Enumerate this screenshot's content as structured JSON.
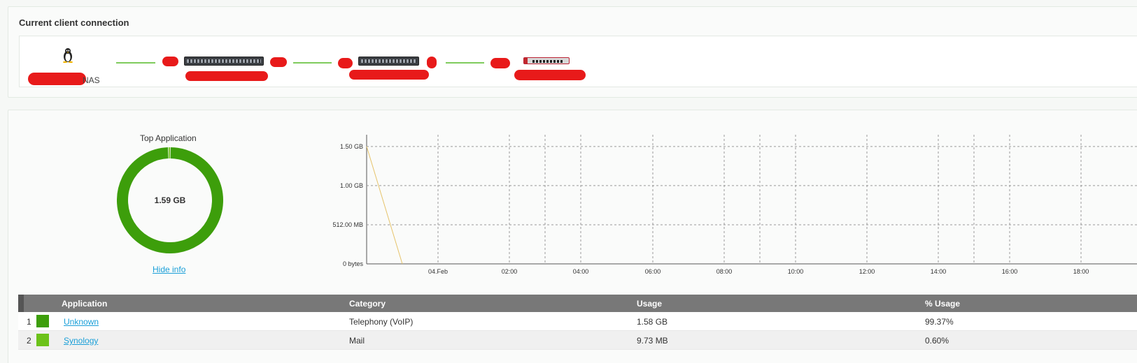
{
  "connection": {
    "title": "Current client connection",
    "client_label": "NAS",
    "icons": {
      "client": "linux-icon",
      "switch1": "switch-icon",
      "switch2": "switch-icon",
      "firewall": "firewall-icon"
    }
  },
  "top_app": {
    "title": "Top Application",
    "total": "1.59 GB",
    "hide_info": "Hide info",
    "slices": [
      {
        "name": "Unknown",
        "pct": 99.37,
        "color": "#3d9e0b"
      },
      {
        "name": "Synology",
        "pct": 0.6,
        "color": "#6cc21a"
      }
    ]
  },
  "chart_data": {
    "type": "line",
    "y_ticks": [
      "0 bytes",
      "512.00 MB",
      "1.00 GB",
      "1.50 GB"
    ],
    "x_ticks": [
      "04.Feb",
      "02:00",
      "04:00",
      "06:00",
      "08:00",
      "10:00",
      "12:00",
      "14:00",
      "16:00",
      "18:00"
    ],
    "ylim_gb": [
      0,
      1.65
    ],
    "series": [
      {
        "color": "#e6c36a",
        "points": [
          {
            "x": "start",
            "y_gb": 1.5
          },
          {
            "x": "00:00 (before 04.Feb)",
            "y_gb": 0
          }
        ]
      }
    ],
    "grid": true
  },
  "table": {
    "headers": [
      "Application",
      "Category",
      "Usage",
      "% Usage"
    ],
    "rows": [
      {
        "index": "1",
        "color": "#3d9e0b",
        "application": "Unknown",
        "category": "Telephony (VoIP)",
        "usage": "1.58 GB",
        "pct": "99.37%"
      },
      {
        "index": "2",
        "color": "#6cc21a",
        "application": "Synology",
        "category": "Mail",
        "usage": "9.73 MB",
        "pct": "0.60%"
      }
    ]
  }
}
